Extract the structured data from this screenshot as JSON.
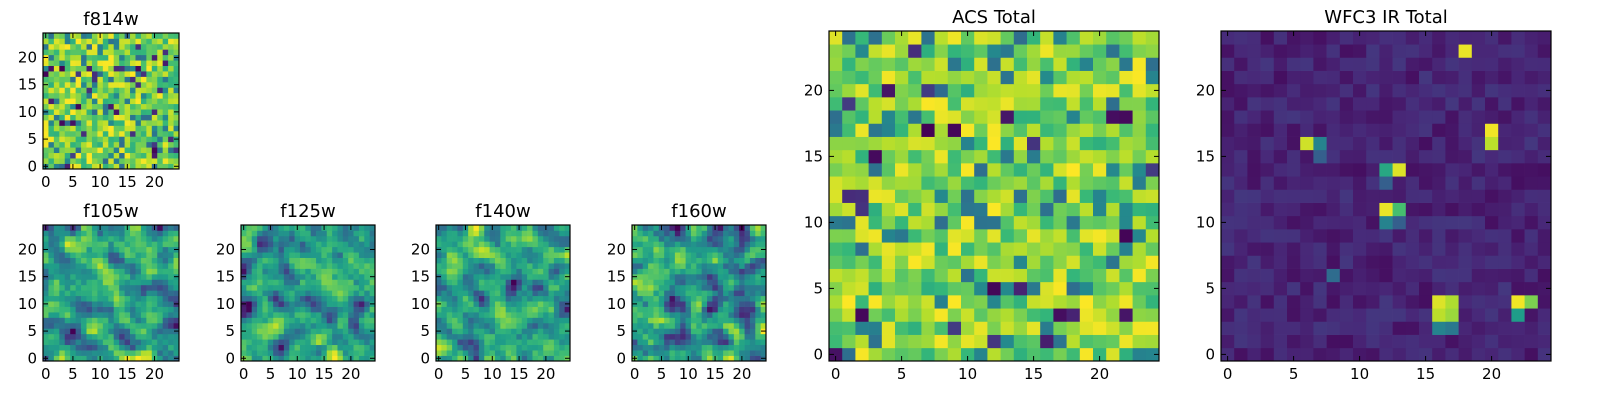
{
  "chart_data": [
    {
      "type": "heatmap",
      "title": "f814w",
      "colormap": "viridis",
      "grid_size": 25,
      "xlim": [
        -0.5,
        24.5
      ],
      "ylim": [
        -0.5,
        24.5
      ],
      "xticks": [
        0,
        5,
        10,
        15,
        20
      ],
      "yticks": [
        0,
        5,
        10,
        15,
        20
      ],
      "value_range": [
        0,
        1
      ],
      "seed": 814,
      "distribution": "high-noisy"
    },
    {
      "type": "heatmap",
      "title": "f105w",
      "colormap": "viridis",
      "grid_size": 25,
      "xlim": [
        -0.5,
        24.5
      ],
      "ylim": [
        -0.5,
        24.5
      ],
      "xticks": [
        0,
        5,
        10,
        15,
        20
      ],
      "yticks": [
        0,
        5,
        10,
        15,
        20
      ],
      "value_range": [
        0,
        1
      ],
      "seed": 105,
      "distribution": "smooth"
    },
    {
      "type": "heatmap",
      "title": "f125w",
      "colormap": "viridis",
      "grid_size": 25,
      "xlim": [
        -0.5,
        24.5
      ],
      "ylim": [
        -0.5,
        24.5
      ],
      "xticks": [
        0,
        5,
        10,
        15,
        20
      ],
      "yticks": [
        0,
        5,
        10,
        15,
        20
      ],
      "value_range": [
        0,
        1
      ],
      "seed": 125,
      "distribution": "smooth"
    },
    {
      "type": "heatmap",
      "title": "f140w",
      "colormap": "viridis",
      "grid_size": 25,
      "xlim": [
        -0.5,
        24.5
      ],
      "ylim": [
        -0.5,
        24.5
      ],
      "xticks": [
        0,
        5,
        10,
        15,
        20
      ],
      "yticks": [
        0,
        5,
        10,
        15,
        20
      ],
      "value_range": [
        0,
        1
      ],
      "seed": 140,
      "distribution": "smooth"
    },
    {
      "type": "heatmap",
      "title": "f160w",
      "colormap": "viridis",
      "grid_size": 25,
      "xlim": [
        -0.5,
        24.5
      ],
      "ylim": [
        -0.5,
        24.5
      ],
      "xticks": [
        0,
        5,
        10,
        15,
        20
      ],
      "yticks": [
        0,
        5,
        10,
        15,
        20
      ],
      "value_range": [
        0,
        1
      ],
      "seed": 160,
      "distribution": "smooth"
    },
    {
      "type": "heatmap",
      "title": "ACS Total",
      "colormap": "viridis",
      "grid_size": 25,
      "xlim": [
        -0.5,
        24.5
      ],
      "ylim": [
        -0.5,
        24.5
      ],
      "xticks": [
        0,
        5,
        10,
        15,
        20
      ],
      "yticks": [
        0,
        5,
        10,
        15,
        20
      ],
      "value_range": [
        0,
        1
      ],
      "seed": 7,
      "distribution": "high-noisy"
    },
    {
      "type": "heatmap",
      "title": "WFC3 IR Total",
      "colormap": "viridis",
      "grid_size": 25,
      "xlim": [
        -0.5,
        24.5
      ],
      "ylim": [
        -0.5,
        24.5
      ],
      "xticks": [
        0,
        5,
        10,
        15,
        20
      ],
      "yticks": [
        0,
        5,
        10,
        15,
        20
      ],
      "value_range": [
        0,
        1
      ],
      "seed": 3,
      "distribution": "low-sparse",
      "bright_pixels": [
        {
          "x": 18,
          "y": 23,
          "value": 0.97
        },
        {
          "x": 6,
          "y": 16,
          "value": 0.93
        },
        {
          "x": 7,
          "y": 16,
          "value": 0.45
        },
        {
          "x": 7,
          "y": 15,
          "value": 0.3
        },
        {
          "x": 20,
          "y": 17,
          "value": 0.98
        },
        {
          "x": 20,
          "y": 16,
          "value": 0.9
        },
        {
          "x": 12,
          "y": 14,
          "value": 0.6
        },
        {
          "x": 13,
          "y": 14,
          "value": 0.95
        },
        {
          "x": 12,
          "y": 13,
          "value": 0.3
        },
        {
          "x": 12,
          "y": 11,
          "value": 0.97
        },
        {
          "x": 13,
          "y": 11,
          "value": 0.7
        },
        {
          "x": 12,
          "y": 10,
          "value": 0.45
        },
        {
          "x": 13,
          "y": 10,
          "value": 0.3
        },
        {
          "x": 8,
          "y": 6,
          "value": 0.35
        },
        {
          "x": 16,
          "y": 4,
          "value": 0.95
        },
        {
          "x": 17,
          "y": 4,
          "value": 0.88
        },
        {
          "x": 16,
          "y": 3,
          "value": 0.9
        },
        {
          "x": 17,
          "y": 3,
          "value": 0.85
        },
        {
          "x": 16,
          "y": 2,
          "value": 0.45
        },
        {
          "x": 17,
          "y": 2,
          "value": 0.4
        },
        {
          "x": 22,
          "y": 4,
          "value": 0.98
        },
        {
          "x": 23,
          "y": 4,
          "value": 0.8
        },
        {
          "x": 22,
          "y": 3,
          "value": 0.55
        }
      ]
    }
  ]
}
